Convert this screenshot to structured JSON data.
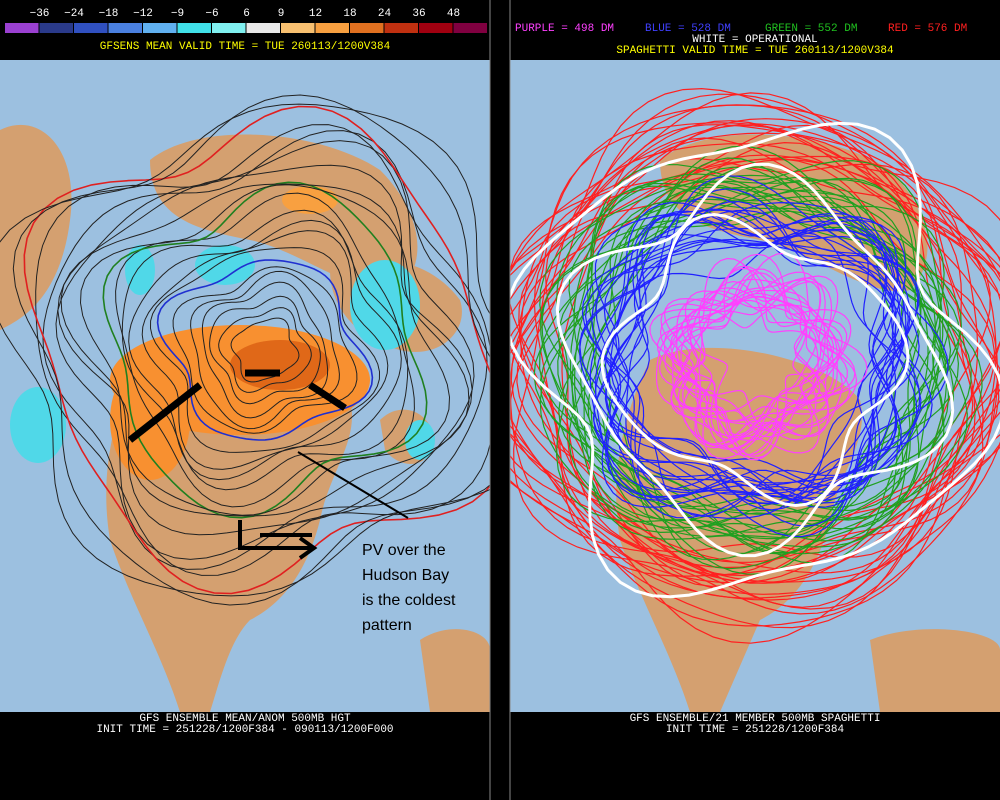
{
  "left_panel": {
    "colorbar": {
      "labels": [
        "−36",
        "−24",
        "−18",
        "−12",
        "−9",
        "−6",
        "6",
        "9",
        "12",
        "18",
        "24",
        "36",
        "48"
      ],
      "colors": [
        "#9a40d0",
        "#2a3a8a",
        "#3050c0",
        "#4a80e0",
        "#60b0f0",
        "#40e0e8",
        "#80f0f0",
        "#e8e8e8",
        "#f8c070",
        "#f8a040",
        "#e07020",
        "#c03010",
        "#a00010",
        "#800040"
      ]
    },
    "title": "GFSENS MEAN VALID TIME = TUE 260113/1200V384",
    "footer": [
      "GFS ENSEMBLE MEAN/ANOM 500MB HGT",
      "INIT TIME = 251228/1200F384 - 090113/1200F000"
    ],
    "annotation": {
      "lines": [
        "PV over the",
        "Hudson Bay",
        "is the coldest",
        "pattern"
      ]
    }
  },
  "right_panel": {
    "legend": [
      {
        "text": "PURPLE = 498 DM",
        "color": "#ff40ff"
      },
      {
        "text": "BLUE = 528 DM",
        "color": "#4040ff"
      },
      {
        "text": "GREEN = 552 DM",
        "color": "#20c020"
      },
      {
        "text": "RED = 576 DM",
        "color": "#ff2020"
      }
    ],
    "operational": "WHITE = OPERATIONAL",
    "title": "SPAGHETTI VALID TIME = TUE 260113/1200V384",
    "footer": [
      "GFS ENSEMBLE/21 MEMBER 500MB SPAGHETTI",
      "INIT TIME = 251228/1200F384"
    ]
  }
}
